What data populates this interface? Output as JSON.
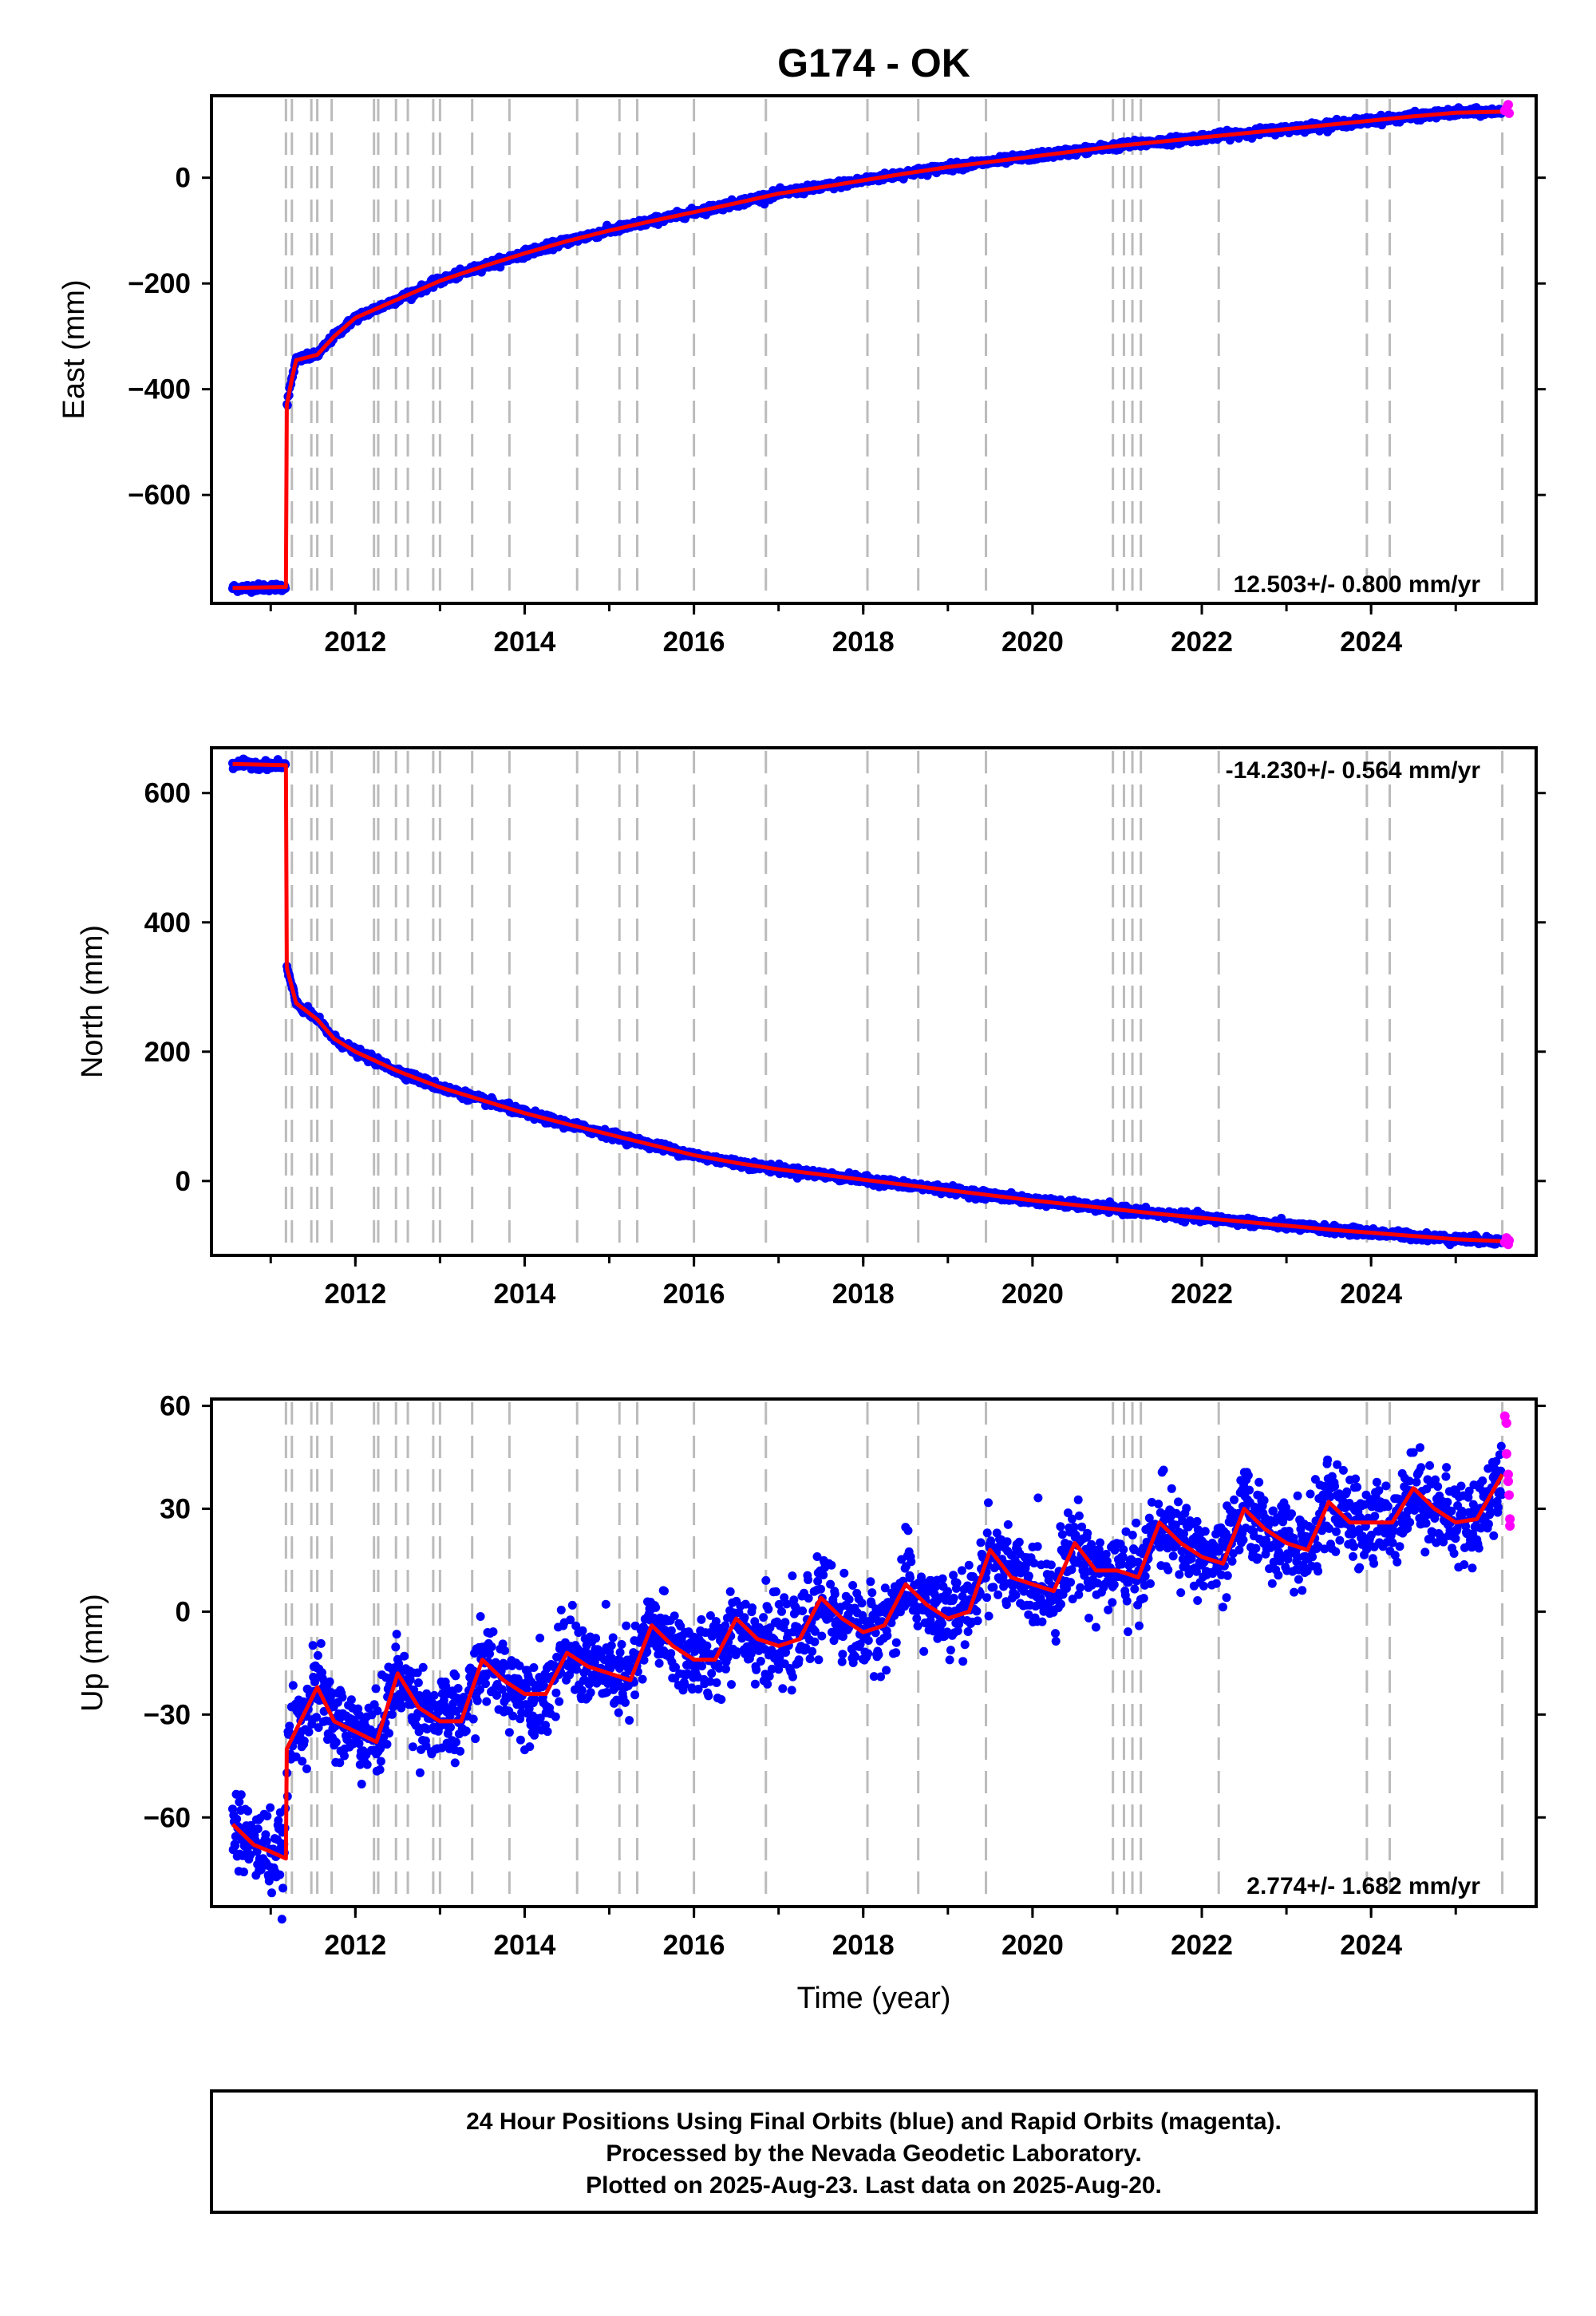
{
  "title": "G174 - OK",
  "colors": {
    "final": "#0000ff",
    "rapid": "#ff00ff",
    "model": "#ff0000",
    "equipment_lines": "#bbbbbb"
  },
  "chart_data": [
    {
      "type": "scatter",
      "ylabel": "East (mm)",
      "xlabel": "",
      "xlim": [
        2010.3,
        2025.95
      ],
      "ylim": [
        -805,
        155
      ],
      "xticks": [
        2012,
        2014,
        2016,
        2018,
        2020,
        2022,
        2024
      ],
      "yticks": [
        0,
        -200,
        -400,
        -600
      ],
      "ytick_labels": [
        "0",
        "−200",
        "−400",
        "−600"
      ],
      "rate": "12.503+/- 0.800 mm/yr",
      "rate_position": "bottom-right",
      "equipment_change_epochs": [
        2011.18,
        2011.25,
        2011.48,
        2011.55,
        2011.72,
        2012.22,
        2012.27,
        2012.48,
        2012.62,
        2012.92,
        2013.0,
        2013.38,
        2013.82,
        2014.62,
        2015.12,
        2015.33,
        2016.0,
        2016.85,
        2018.05,
        2018.65,
        2019.45,
        2020.95,
        2021.08,
        2021.18,
        2021.28,
        2022.2,
        2023.95,
        2024.22,
        2025.55
      ],
      "model": [
        [
          2010.55,
          -776
        ],
        [
          2011.18,
          -774
        ],
        [
          2011.19,
          -430
        ],
        [
          2011.25,
          -380
        ],
        [
          2011.3,
          -345
        ],
        [
          2011.55,
          -335
        ],
        [
          2011.75,
          -300
        ],
        [
          2012,
          -265
        ],
        [
          2012.5,
          -230
        ],
        [
          2013,
          -195
        ],
        [
          2013.5,
          -168
        ],
        [
          2014,
          -143
        ],
        [
          2014.5,
          -120
        ],
        [
          2015,
          -100
        ],
        [
          2015.5,
          -82
        ],
        [
          2016,
          -65
        ],
        [
          2016.5,
          -48
        ],
        [
          2017,
          -30
        ],
        [
          2017.5,
          -18
        ],
        [
          2018,
          -5
        ],
        [
          2018.5,
          8
        ],
        [
          2019,
          20
        ],
        [
          2019.5,
          30
        ],
        [
          2020,
          40
        ],
        [
          2020.5,
          50
        ],
        [
          2021,
          60
        ],
        [
          2021.5,
          68
        ],
        [
          2022,
          76
        ],
        [
          2022.5,
          84
        ],
        [
          2023,
          92
        ],
        [
          2023.5,
          100
        ],
        [
          2024,
          108
        ],
        [
          2024.5,
          116
        ],
        [
          2025,
          123
        ],
        [
          2025.55,
          125
        ]
      ],
      "rapid": [
        [
          2025.58,
          127
        ],
        [
          2025.6,
          132
        ],
        [
          2025.62,
          138
        ],
        [
          2025.63,
          122
        ]
      ]
    },
    {
      "type": "scatter",
      "ylabel": "North (mm)",
      "xlabel": "",
      "xlim": [
        2010.3,
        2025.95
      ],
      "ylim": [
        -115,
        670
      ],
      "xticks": [
        2012,
        2014,
        2016,
        2018,
        2020,
        2022,
        2024
      ],
      "yticks": [
        600,
        400,
        200,
        0
      ],
      "ytick_labels": [
        "600",
        "400",
        "200",
        "0"
      ],
      "rate": "-14.230+/- 0.564 mm/yr",
      "rate_position": "top-right",
      "equipment_change_epochs": [
        2011.18,
        2011.25,
        2011.48,
        2011.55,
        2011.72,
        2012.22,
        2012.27,
        2012.48,
        2012.62,
        2012.92,
        2013.0,
        2013.38,
        2013.82,
        2014.62,
        2015.12,
        2015.33,
        2016.0,
        2016.85,
        2018.05,
        2018.65,
        2019.45,
        2020.95,
        2021.08,
        2021.18,
        2021.28,
        2022.2,
        2023.95,
        2024.22,
        2025.55
      ],
      "model": [
        [
          2010.55,
          645
        ],
        [
          2011.18,
          643
        ],
        [
          2011.19,
          330
        ],
        [
          2011.3,
          275
        ],
        [
          2011.55,
          250
        ],
        [
          2011.75,
          220
        ],
        [
          2012,
          200
        ],
        [
          2012.5,
          170
        ],
        [
          2013,
          145
        ],
        [
          2013.5,
          125
        ],
        [
          2014,
          105
        ],
        [
          2014.5,
          88
        ],
        [
          2015,
          72
        ],
        [
          2015.5,
          56
        ],
        [
          2016,
          40
        ],
        [
          2016.5,
          28
        ],
        [
          2017,
          18
        ],
        [
          2017.5,
          10
        ],
        [
          2018,
          2
        ],
        [
          2018.5,
          -6
        ],
        [
          2019,
          -14
        ],
        [
          2019.5,
          -22
        ],
        [
          2020,
          -30
        ],
        [
          2020.5,
          -37
        ],
        [
          2021,
          -44
        ],
        [
          2021.5,
          -51
        ],
        [
          2022,
          -57
        ],
        [
          2022.5,
          -63
        ],
        [
          2023,
          -69
        ],
        [
          2023.5,
          -75
        ],
        [
          2024,
          -80
        ],
        [
          2024.5,
          -85
        ],
        [
          2025,
          -90
        ],
        [
          2025.55,
          -93
        ]
      ],
      "rapid": [
        [
          2025.58,
          -95
        ],
        [
          2025.6,
          -88
        ],
        [
          2025.62,
          -98
        ],
        [
          2025.63,
          -92
        ]
      ]
    },
    {
      "type": "scatter",
      "ylabel": "Up (mm)",
      "xlabel": "Time (year)",
      "xlim": [
        2010.3,
        2025.95
      ],
      "ylim": [
        -86,
        62
      ],
      "xticks": [
        2012,
        2014,
        2016,
        2018,
        2020,
        2022,
        2024
      ],
      "yticks": [
        60,
        30,
        0,
        -30,
        -60
      ],
      "ytick_labels": [
        "60",
        "30",
        "0",
        "−30",
        "−60"
      ],
      "rate": "2.774+/- 1.682 mm/yr",
      "rate_position": "bottom-right",
      "equipment_change_epochs": [
        2011.18,
        2011.25,
        2011.48,
        2011.55,
        2011.72,
        2012.22,
        2012.27,
        2012.48,
        2012.62,
        2012.92,
        2013.0,
        2013.38,
        2013.82,
        2014.62,
        2015.12,
        2015.33,
        2016.0,
        2016.85,
        2018.05,
        2018.65,
        2019.45,
        2020.95,
        2021.08,
        2021.18,
        2021.28,
        2022.2,
        2023.95,
        2024.22,
        2025.55
      ],
      "model": [
        [
          2010.55,
          -62
        ],
        [
          2010.8,
          -68
        ],
        [
          2011.0,
          -70
        ],
        [
          2011.18,
          -72
        ],
        [
          2011.19,
          -40
        ],
        [
          2011.35,
          -32
        ],
        [
          2011.55,
          -22
        ],
        [
          2011.75,
          -32
        ],
        [
          2012.0,
          -35
        ],
        [
          2012.25,
          -38
        ],
        [
          2012.5,
          -18
        ],
        [
          2012.75,
          -28
        ],
        [
          2013.0,
          -32
        ],
        [
          2013.25,
          -32
        ],
        [
          2013.5,
          -14
        ],
        [
          2013.75,
          -20
        ],
        [
          2014.0,
          -24
        ],
        [
          2014.25,
          -24
        ],
        [
          2014.5,
          -12
        ],
        [
          2014.75,
          -16
        ],
        [
          2015.0,
          -18
        ],
        [
          2015.25,
          -20
        ],
        [
          2015.5,
          -4
        ],
        [
          2015.75,
          -10
        ],
        [
          2016.0,
          -14
        ],
        [
          2016.25,
          -14
        ],
        [
          2016.5,
          -2
        ],
        [
          2016.75,
          -8
        ],
        [
          2017.0,
          -10
        ],
        [
          2017.25,
          -8
        ],
        [
          2017.5,
          4
        ],
        [
          2017.75,
          -2
        ],
        [
          2018.0,
          -6
        ],
        [
          2018.25,
          -4
        ],
        [
          2018.5,
          8
        ],
        [
          2018.75,
          2
        ],
        [
          2019.0,
          -2
        ],
        [
          2019.25,
          0
        ],
        [
          2019.5,
          18
        ],
        [
          2019.75,
          10
        ],
        [
          2020.0,
          8
        ],
        [
          2020.25,
          6
        ],
        [
          2020.5,
          20
        ],
        [
          2020.75,
          12
        ],
        [
          2021.0,
          12
        ],
        [
          2021.25,
          10
        ],
        [
          2021.5,
          26
        ],
        [
          2021.75,
          20
        ],
        [
          2022.0,
          16
        ],
        [
          2022.25,
          14
        ],
        [
          2022.5,
          30
        ],
        [
          2022.75,
          24
        ],
        [
          2023.0,
          20
        ],
        [
          2023.25,
          18
        ],
        [
          2023.5,
          32
        ],
        [
          2023.75,
          26
        ],
        [
          2024.0,
          26
        ],
        [
          2024.25,
          26
        ],
        [
          2024.5,
          36
        ],
        [
          2024.75,
          30
        ],
        [
          2025.0,
          26
        ],
        [
          2025.25,
          27
        ],
        [
          2025.55,
          40
        ]
      ],
      "rapid": [
        [
          2025.58,
          57
        ],
        [
          2025.6,
          55
        ],
        [
          2025.6,
          46
        ],
        [
          2025.62,
          40
        ],
        [
          2025.62,
          38
        ],
        [
          2025.63,
          34
        ],
        [
          2025.64,
          27
        ],
        [
          2025.64,
          25
        ]
      ]
    }
  ],
  "footer": {
    "line1": "24 Hour Positions Using Final Orbits (blue) and Rapid Orbits (magenta).",
    "line2": "Processed by the Nevada Geodetic Laboratory.",
    "line3": "Plotted on 2025-Aug-23. Last data on 2025-Aug-20."
  }
}
